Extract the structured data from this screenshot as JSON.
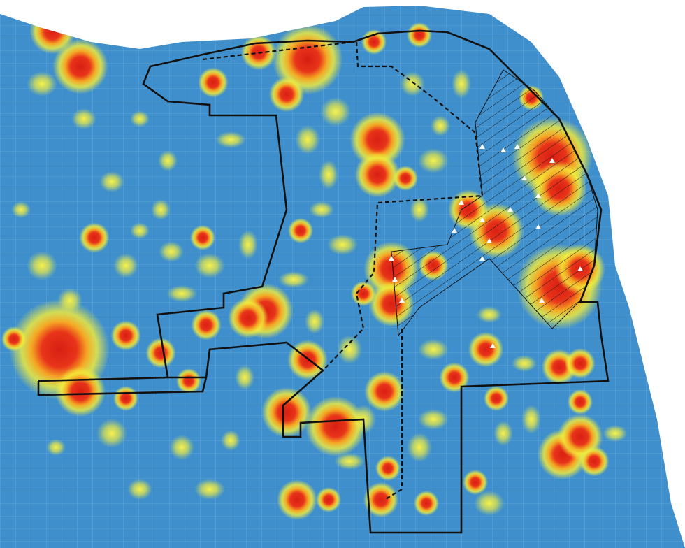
{
  "map": {
    "type": "heatmap",
    "colors": {
      "land": "#3f8fcc",
      "street": "#7fb6e0",
      "low": "#f4ef3a",
      "mid": "#f08a1e",
      "high": "#e0261a",
      "boundary": "#111111",
      "background": "#ffffff"
    },
    "layers": [
      "density-heatmap",
      "street-grid",
      "district-boundary-solid",
      "district-boundary-dashed",
      "hatched-zone",
      "point-markers"
    ],
    "legend": null
  }
}
